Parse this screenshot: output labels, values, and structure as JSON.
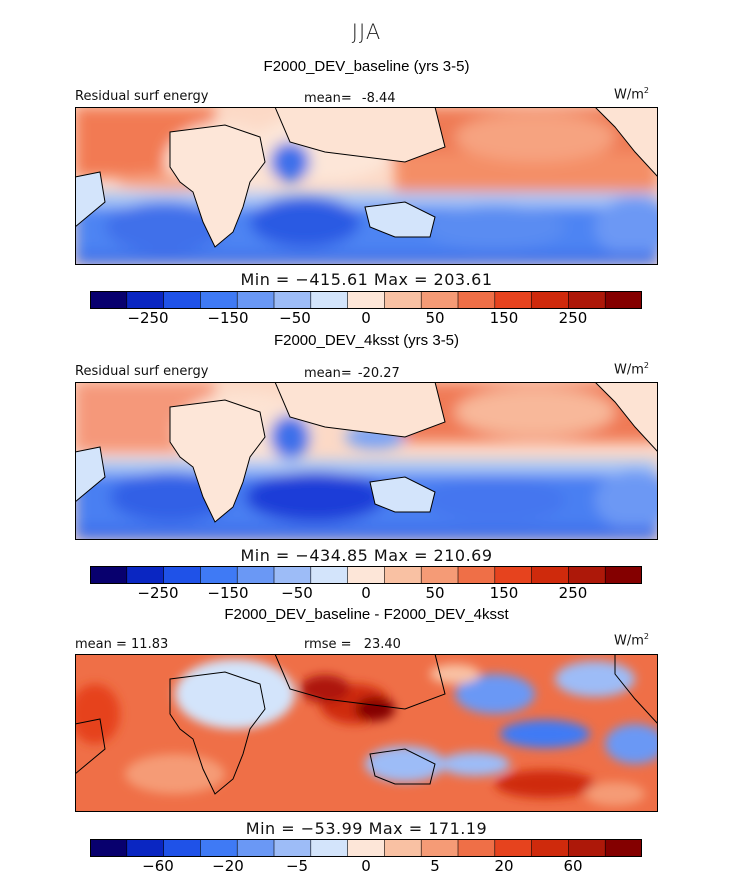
{
  "season": "JJA",
  "palette": [
    "#08006e",
    "#0a26c2",
    "#1f52e8",
    "#3f7af5",
    "#6a98f5",
    "#9dbcf7",
    "#d3e4fb",
    "#fde6d8",
    "#f9c1a3",
    "#f59b76",
    "#ef6f47",
    "#e6431e",
    "#cf2a0c",
    "#ad1809",
    "#840000"
  ],
  "panels": [
    {
      "title": "F2000_DEV_baseline (yrs 3-5)",
      "left_label": "Residual surf energy",
      "stat_label": "mean=",
      "stat_value": "-8.44",
      "units": "W/m",
      "units_sup": "2",
      "minmax": "Min = −415.61  Max = 203.61",
      "colorbar_ticks": [
        "−250",
        "−150",
        "−50",
        "0",
        "50",
        "150",
        "250"
      ]
    },
    {
      "title": "F2000_DEV_4ksst (yrs 3-5)",
      "left_label": "Residual surf energy",
      "stat_label": "mean=",
      "stat_value": "-20.27",
      "units": "W/m",
      "units_sup": "2",
      "minmax": "Min = −434.85  Max = 210.69",
      "colorbar_ticks": [
        "−250",
        "−150",
        "−50",
        "0",
        "50",
        "150",
        "250"
      ]
    },
    {
      "title": "F2000_DEV_baseline - F2000_DEV_4ksst",
      "left_label": "mean =  11.83",
      "stat_label": "rmse =",
      "stat_value": "23.40",
      "units": "W/m",
      "units_sup": "2",
      "minmax": "Min = −53.99  Max = 171.19",
      "colorbar_ticks": [
        "−60",
        "−20",
        "−5",
        "0",
        "5",
        "20",
        "60"
      ]
    }
  ]
}
